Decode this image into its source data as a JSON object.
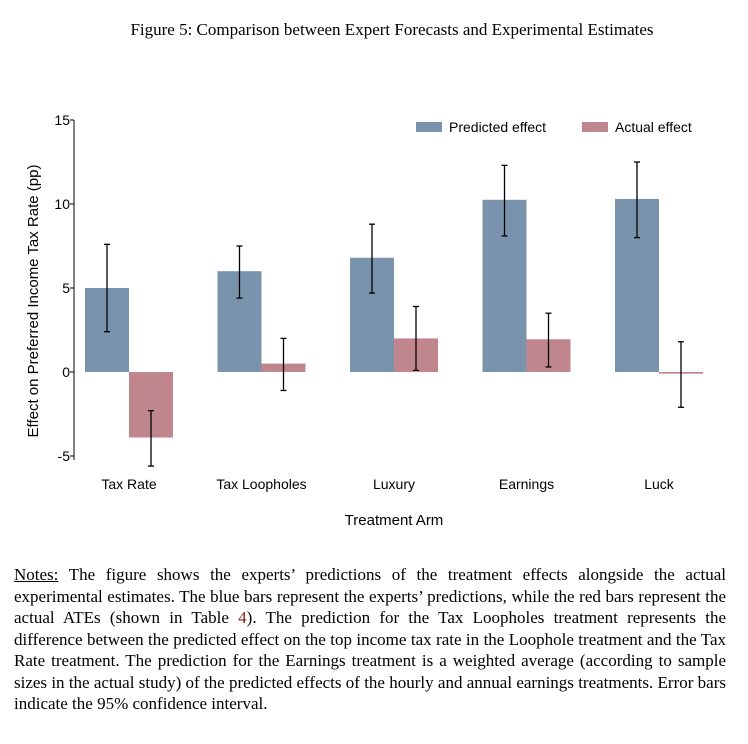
{
  "caption": "Figure 5: Comparison between Expert Forecasts and Experimental Estimates",
  "chart_data": {
    "type": "bar",
    "categories": [
      "Tax Rate",
      "Tax Loopholes",
      "Luxury",
      "Earnings",
      "Luck"
    ],
    "series": [
      {
        "name": "Predicted effect",
        "color": "#7893ab",
        "values": [
          5.0,
          6.0,
          6.8,
          10.25,
          10.3
        ],
        "ci_low": [
          2.4,
          4.4,
          4.7,
          8.1,
          8.0
        ],
        "ci_high": [
          7.6,
          7.5,
          8.8,
          12.3,
          12.5
        ]
      },
      {
        "name": "Actual effect",
        "color": "#c0868d",
        "values": [
          -3.9,
          0.5,
          2.0,
          1.95,
          -0.1
        ],
        "ci_low": [
          -5.6,
          -1.1,
          0.1,
          0.3,
          -2.1
        ],
        "ci_high": [
          -2.3,
          2.0,
          3.9,
          3.5,
          1.8
        ]
      }
    ],
    "xlabel": "Treatment Arm",
    "ylabel": "Effect on Preferred Income Tax Rate (pp)",
    "ylim": [
      -5,
      15
    ],
    "yticks": [
      -5,
      0,
      5,
      10,
      15
    ],
    "grid": false,
    "legend_position": "top-right"
  },
  "notes": {
    "label": "Notes:",
    "text_1": " The figure shows the experts’ predictions of the treatment effects alongside the actual experimental estimates.  The blue bars represent the experts’ predictions, while the red bars represent the actual ATEs (shown in Table ",
    "table_ref": "4",
    "text_2": ").  The prediction for the Tax Loopholes treatment represents the difference between the predicted effect on the top income tax rate in the Loophole treatment and the Tax Rate treatment.  The prediction for the Earnings treatment is a weighted average (according to sample sizes in the actual study) of the predicted effects of the hourly and annual earnings treatments.  Error bars indicate the 95% confidence interval."
  }
}
